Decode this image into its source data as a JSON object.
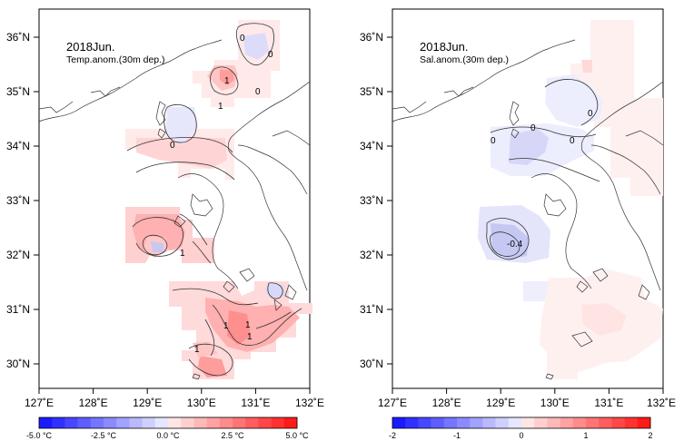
{
  "panels": [
    {
      "title": "2018Jun.",
      "subtitle": "Temp.anom.(30m dep.)",
      "lon_labels": [
        "127˚E",
        "128˚E",
        "129˚E",
        "130˚E",
        "131˚E",
        "132˚E"
      ],
      "lat_labels": [
        "36˚N",
        "35˚N",
        "34˚N",
        "33˚N",
        "32˚N",
        "31˚N",
        "30˚N"
      ],
      "contour_labels": [
        "0",
        "0",
        "0",
        "0",
        "1",
        "1",
        "1",
        "1",
        "1",
        "1",
        "1"
      ],
      "colorbar": {
        "labels": [
          "-5.0 °C",
          "-2.5 °C",
          "0.0 °C",
          "2.5 °C",
          "5.0 °C"
        ],
        "range": [
          -5,
          5
        ],
        "steps": 20
      }
    },
    {
      "title": "2018Jun.",
      "subtitle": "Sal.anom.(30m dep.)",
      "lon_labels": [
        "127˚E",
        "128˚E",
        "129˚E",
        "130˚E",
        "131˚E",
        "132˚E"
      ],
      "lat_labels": [
        "36˚N",
        "35˚N",
        "34˚N",
        "33˚N",
        "32˚N",
        "31˚N",
        "30˚N"
      ],
      "contour_labels": [
        "0",
        "0",
        "0",
        "0",
        "-0.4"
      ],
      "colorbar": {
        "labels": [
          "-2",
          "-1",
          "0",
          "1",
          "2"
        ],
        "range": [
          -2,
          2
        ],
        "steps": 20
      }
    }
  ],
  "colors": {
    "neg_strong": "#1a1aff",
    "neg_light": "#e6e6ff",
    "pos_light": "#ffe6e6",
    "pos_strong": "#ff1a1a",
    "land_line": "#333333",
    "frame": "#000000"
  }
}
